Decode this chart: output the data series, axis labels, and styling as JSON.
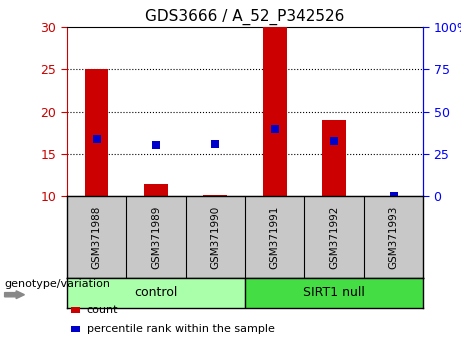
{
  "title": "GDS3666 / A_52_P342526",
  "samples": [
    "GSM371988",
    "GSM371989",
    "GSM371990",
    "GSM371991",
    "GSM371992",
    "GSM371993"
  ],
  "bar_values": [
    25.0,
    11.5,
    10.2,
    30.0,
    19.0,
    10.05
  ],
  "bar_base": 10.0,
  "percentile_values": [
    16.75,
    16.0,
    16.2,
    18.0,
    16.5,
    10.05
  ],
  "bar_color": "#cc0000",
  "percentile_color": "#0000cc",
  "ylim_left": [
    10,
    30
  ],
  "ylim_right": [
    0,
    100
  ],
  "yticks_left": [
    10,
    15,
    20,
    25,
    30
  ],
  "yticks_right": [
    0,
    25,
    50,
    75,
    100
  ],
  "ytick_labels_right": [
    "0",
    "25",
    "50",
    "75",
    "100%"
  ],
  "groups": [
    {
      "label": "control",
      "start": 0,
      "end": 3,
      "color": "#aaffaa"
    },
    {
      "label": "SIRT1 null",
      "start": 3,
      "end": 6,
      "color": "#44dd44"
    }
  ],
  "genotype_label": "genotype/variation",
  "legend_items": [
    {
      "color": "#cc0000",
      "label": "count"
    },
    {
      "color": "#0000cc",
      "label": "percentile rank within the sample"
    }
  ],
  "bg_color": "#ffffff",
  "plot_bg": "#ffffff",
  "label_area_color": "#c8c8c8",
  "bar_width": 0.4,
  "marker_size": 6
}
